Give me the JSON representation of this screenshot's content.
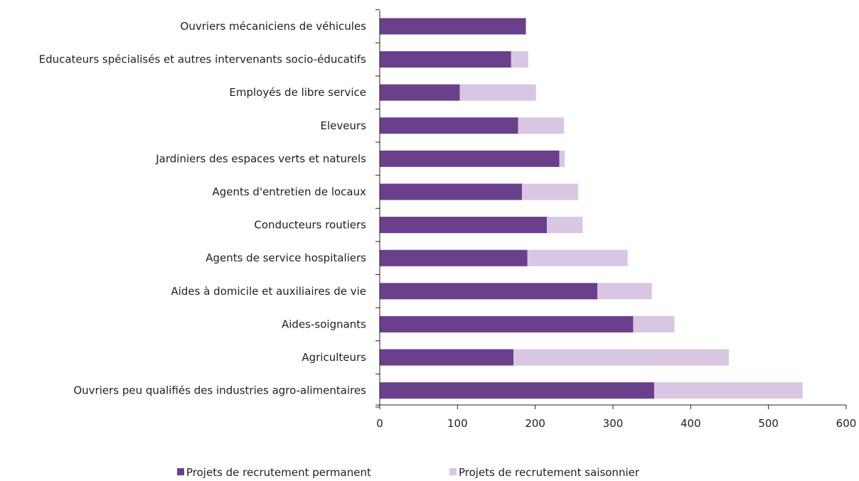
{
  "chart_data": {
    "type": "bar",
    "orientation": "horizontal",
    "stacked": true,
    "categories": [
      "Ouvriers mécaniciens de véhicules",
      "Educateurs spécialisés et autres intervenants socio-éducatifs",
      "Employés de libre service",
      "Eleveurs",
      "Jardiniers des espaces verts et naturels",
      "Agents d'entretien de locaux",
      "Conducteurs routiers",
      "Agents de service hospitaliers",
      "Aides à domicile et auxiliaires de vie",
      "Aides-soignants",
      "Agriculteurs",
      "Ouvriers peu qualifiés des industries agro-alimentaires"
    ],
    "series": [
      {
        "name": "Projets de recrutement permanent",
        "color": "#6a3f8c",
        "values": [
          188,
          169,
          103,
          178,
          231,
          183,
          215,
          190,
          280,
          326,
          172,
          353
        ]
      },
      {
        "name": "Projets de recrutement saisonnier",
        "color": "#d9c6e3",
        "values": [
          0,
          22,
          98,
          59,
          7,
          72,
          46,
          129,
          70,
          53,
          277,
          191
        ]
      }
    ],
    "xlim": [
      0,
      600
    ],
    "xticks": [
      "0",
      "100",
      "200",
      "300",
      "400",
      "500",
      "600"
    ],
    "grid": false,
    "legend_position": "bottom"
  }
}
